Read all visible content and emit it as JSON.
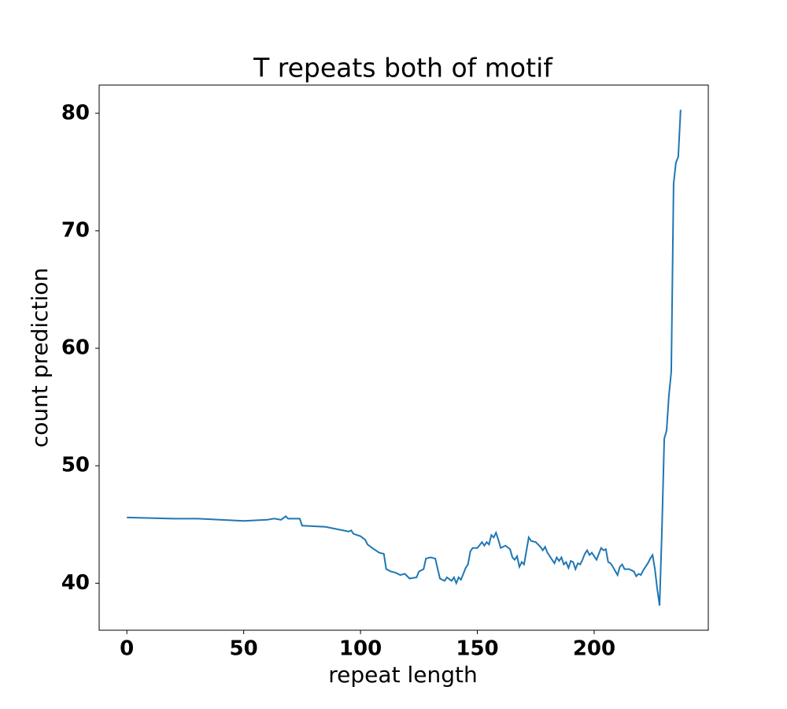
{
  "chart_data": {
    "type": "line",
    "title": "T repeats both of motif",
    "x_label": "repeat length",
    "y_label": "count prediction",
    "color": "#1f77b4",
    "x": [
      0,
      20,
      30,
      50,
      60,
      63,
      66,
      68,
      69,
      74,
      75,
      85,
      90,
      95,
      96,
      97,
      100,
      102,
      103,
      105,
      108,
      110,
      111,
      113,
      115,
      117,
      119,
      121,
      124,
      125,
      127,
      128,
      130,
      132,
      134,
      136,
      137,
      139,
      140,
      141,
      142,
      143,
      145,
      146,
      147,
      148,
      150,
      152,
      153,
      154,
      155,
      156,
      157,
      158,
      159,
      160,
      162,
      164,
      165,
      166,
      167,
      168,
      169,
      170,
      172,
      173,
      175,
      177,
      178,
      179,
      180,
      182,
      183,
      184,
      185,
      186,
      187,
      188,
      189,
      190,
      191,
      192,
      193,
      194,
      195,
      196,
      197,
      198,
      199,
      200,
      201,
      202,
      203,
      204,
      205,
      206,
      207,
      208,
      210,
      211,
      212,
      213,
      215,
      217,
      218,
      219,
      220,
      221,
      222,
      223,
      224,
      225,
      226,
      227,
      228,
      229,
      230,
      231,
      232,
      233,
      234,
      235,
      236,
      237
    ],
    "values": [
      45.6,
      45.5,
      45.5,
      45.3,
      45.4,
      45.5,
      45.4,
      45.7,
      45.5,
      45.5,
      44.9,
      44.8,
      44.6,
      44.4,
      44.5,
      44.2,
      44.0,
      43.7,
      43.3,
      43.0,
      42.6,
      42.5,
      41.2,
      41.0,
      40.9,
      40.7,
      40.8,
      40.4,
      40.5,
      41.0,
      41.2,
      42.1,
      42.2,
      42.1,
      40.4,
      40.2,
      40.5,
      40.2,
      40.5,
      40.0,
      40.5,
      40.3,
      41.3,
      41.6,
      42.7,
      43.0,
      43.0,
      43.5,
      43.2,
      43.5,
      43.3,
      44.1,
      43.9,
      44.3,
      43.7,
      43.0,
      43.2,
      42.9,
      42.2,
      42.0,
      42.3,
      41.4,
      41.8,
      41.6,
      43.9,
      43.6,
      43.5,
      43.1,
      42.8,
      43.1,
      42.6,
      42.0,
      41.7,
      42.2,
      41.9,
      42.2,
      41.6,
      41.8,
      41.3,
      41.9,
      41.8,
      41.2,
      41.7,
      41.6,
      42.0,
      42.5,
      42.8,
      42.4,
      42.6,
      42.3,
      42.0,
      42.5,
      43.0,
      42.8,
      42.9,
      41.8,
      41.7,
      41.4,
      40.7,
      41.4,
      41.6,
      41.2,
      41.2,
      41.0,
      40.6,
      40.8,
      40.7,
      41.1,
      41.4,
      41.7,
      42.1,
      42.4,
      41.2,
      39.5,
      38.1,
      44.5,
      52.3,
      53.0,
      56.0,
      58.0,
      74.0,
      75.8,
      76.3,
      80.3
    ],
    "xlim": [
      -11.85,
      248.85
    ],
    "ylim": [
      36.0,
      82.4
    ],
    "xticks": [
      0,
      50,
      100,
      150,
      200
    ],
    "yticks": [
      40,
      50,
      60,
      70,
      80
    ],
    "grid": false
  }
}
